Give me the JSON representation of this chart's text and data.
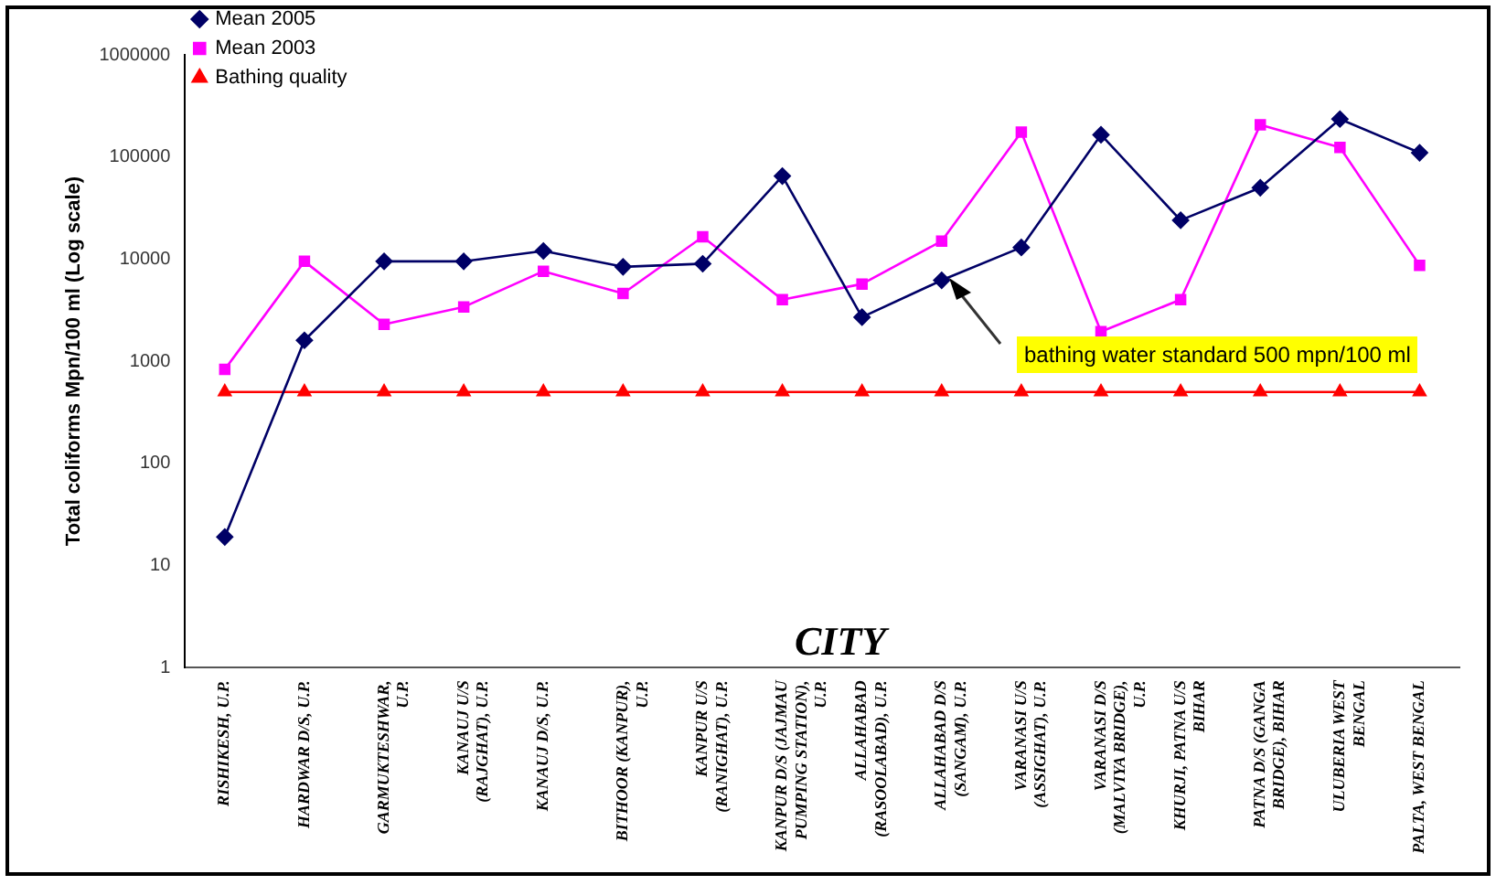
{
  "chart_data": {
    "type": "line",
    "xlabel": "CITY",
    "ylabel": "Total coliforms Mpn/100 ml (Log scale)",
    "categories": [
      "RISHIKESH, U.P.",
      "HARDWAR D/S, U.P.",
      "GARMUKTESHWAR, U.P.",
      "KANAUJ U/S (RAJGHAT), U.P.",
      "KANAUJ D/S, U.P.",
      "BITHOOR (KANPUR), U.P.",
      "KANPUR U/S (RANIGHAT), U.P.",
      "KANPUR D/S (JAJMAU PUMPING STATION), U.P.",
      "ALLAHABAD (RASOOLABAD), U.P.",
      "ALLAHABAD D/S (SANGAM), U.P.",
      "VARANASI U/S (ASSIGHAT), U.P.",
      "VARANASI D/S (MALVIYA BRIDGE), U.P.",
      "KHURJI, PATNA U/S BIHAR",
      "PATNA D/S (GANGA BRIDGE), BIHAR",
      "ULUBERIA WEST BENGAL",
      "PALTA, WEST BENGAL"
    ],
    "series": [
      {
        "name": "Mean 2005",
        "color": "#000066",
        "marker": "diamond",
        "values": [
          19,
          1600,
          9500,
          9500,
          12000,
          8400,
          9000,
          65000,
          2700,
          6200,
          13000,
          165000,
          24000,
          50000,
          235000,
          110000
        ]
      },
      {
        "name": "Mean 2003",
        "color": "#ff00ff",
        "marker": "square",
        "values": [
          830,
          9500,
          2300,
          3400,
          7600,
          4600,
          16500,
          4000,
          5700,
          15000,
          175000,
          1950,
          4000,
          207000,
          124000,
          8700
        ]
      },
      {
        "name": "Bathing quality",
        "color": "#ff0000",
        "marker": "triangle",
        "values": [
          500,
          500,
          500,
          500,
          500,
          500,
          500,
          500,
          500,
          500,
          500,
          500,
          500,
          500,
          500,
          500
        ]
      }
    ],
    "annotations": [
      "bathing water standard 500 mpn/100 ml"
    ],
    "log": "y",
    "ylim": [
      1,
      1000000
    ],
    "yticks": [
      1,
      10,
      100,
      1000,
      10000,
      100000,
      1000000
    ],
    "grid": false,
    "legend": "top left"
  }
}
